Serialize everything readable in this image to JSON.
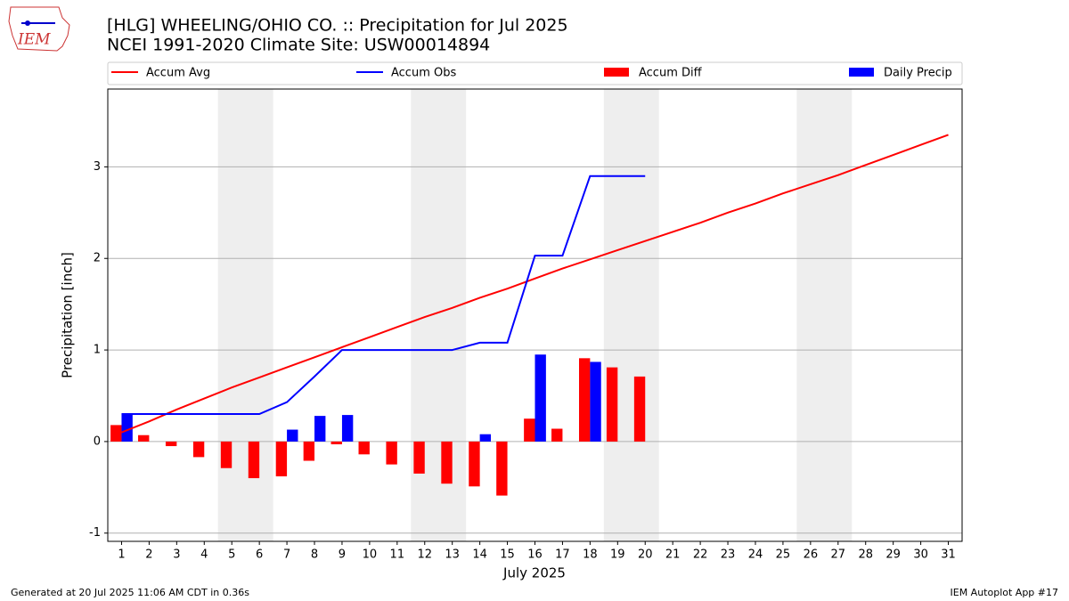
{
  "chart_data": {
    "type": "combo",
    "title": "[HLG] WHEELING/OHIO CO. :: Precipitation for Jul 2025",
    "subtitle": "NCEI 1991-2020 Climate Site: USW00014894",
    "logo_text": "IEM",
    "xlabel": "July 2025",
    "ylabel": "Precipitation [inch]",
    "footer_left": "Generated at 20 Jul 2025 11:06 AM CDT in 0.36s",
    "footer_right": "IEM Autoplot App #17",
    "x": [
      1,
      2,
      3,
      4,
      5,
      6,
      7,
      8,
      9,
      10,
      11,
      12,
      13,
      14,
      15,
      16,
      17,
      18,
      19,
      20,
      21,
      22,
      23,
      24,
      25,
      26,
      27,
      28,
      29,
      30,
      31
    ],
    "xlim": [
      0.5,
      31.5
    ],
    "xticks": [
      1,
      2,
      3,
      4,
      5,
      6,
      7,
      8,
      9,
      10,
      11,
      12,
      13,
      14,
      15,
      16,
      17,
      18,
      19,
      20,
      21,
      22,
      23,
      24,
      25,
      26,
      27,
      28,
      29,
      30,
      31
    ],
    "ylim": [
      -1.09,
      3.85
    ],
    "yticks": [
      -1,
      0,
      1,
      2,
      3
    ],
    "grid": true,
    "weekend_spans": [
      [
        4.5,
        6.5
      ],
      [
        11.5,
        13.5
      ],
      [
        18.5,
        20.5
      ],
      [
        25.5,
        27.5
      ]
    ],
    "weekend_color": "#eeeeee",
    "series": [
      {
        "name": "Accum Avg",
        "style": "line",
        "color": "#ff0000",
        "values": [
          0.1,
          0.22,
          0.35,
          0.47,
          0.59,
          0.7,
          0.81,
          0.92,
          1.03,
          1.14,
          1.25,
          1.36,
          1.46,
          1.57,
          1.67,
          1.78,
          1.89,
          1.99,
          2.09,
          2.19,
          2.29,
          2.39,
          2.5,
          2.6,
          2.71,
          2.81,
          2.91,
          3.02,
          3.13,
          3.24,
          3.35
        ]
      },
      {
        "name": "Accum Obs",
        "style": "line",
        "color": "#0000ff",
        "values": [
          0.3,
          0.3,
          0.3,
          0.3,
          0.3,
          0.3,
          0.43,
          0.71,
          1.0,
          1.0,
          1.0,
          1.0,
          1.0,
          1.08,
          1.08,
          2.03,
          2.03,
          2.9,
          2.9,
          2.9,
          null,
          null,
          null,
          null,
          null,
          null,
          null,
          null,
          null,
          null,
          null
        ]
      },
      {
        "name": "Accum Diff",
        "style": "bar",
        "offset": "left",
        "color": "#ff0000",
        "values": [
          0.18,
          0.07,
          -0.05,
          -0.17,
          -0.29,
          -0.4,
          -0.38,
          -0.21,
          -0.03,
          -0.14,
          -0.25,
          -0.35,
          -0.46,
          -0.49,
          -0.59,
          0.25,
          0.14,
          0.91,
          0.81,
          0.71,
          null,
          null,
          null,
          null,
          null,
          null,
          null,
          null,
          null,
          null,
          null
        ]
      },
      {
        "name": "Daily Precip",
        "style": "bar",
        "offset": "right",
        "color": "#0000ff",
        "values": [
          0.3,
          0,
          0,
          0,
          0,
          0,
          0.13,
          0.28,
          0.29,
          0,
          0,
          0,
          0,
          0.08,
          0,
          0.95,
          0,
          0.87,
          0,
          0,
          null,
          null,
          null,
          null,
          null,
          null,
          null,
          null,
          null,
          null,
          null
        ]
      }
    ]
  }
}
